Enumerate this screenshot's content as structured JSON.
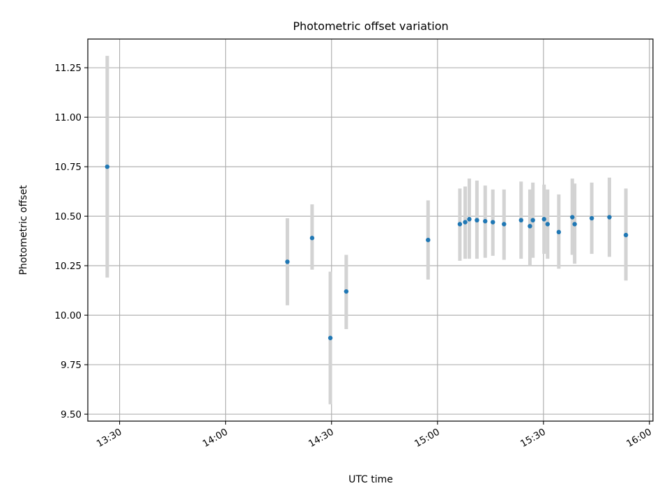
{
  "chart_data": {
    "type": "scatter",
    "title": "Photometric offset variation",
    "xlabel": "UTC time",
    "ylabel": "Photometric offset",
    "xlim": [
      "13:21",
      "16:01"
    ],
    "ylim": [
      9.465,
      11.395
    ],
    "x_ticks": [
      "13:30",
      "14:00",
      "14:30",
      "15:00",
      "15:30",
      "16:00"
    ],
    "y_ticks": [
      "9.50",
      "9.75",
      "10.00",
      "10.25",
      "10.50",
      "10.75",
      "11.00",
      "11.25"
    ],
    "grid": true,
    "colors": {
      "points": "#1f77b4",
      "error_bars": "#d3d3d3",
      "grid": "#b0b0b0"
    },
    "series": [
      {
        "points": [
          {
            "x": "13:26:30",
            "y": 10.75,
            "ylo": 10.19,
            "yhi": 11.31
          },
          {
            "x": "14:17:30",
            "y": 10.27,
            "ylo": 10.05,
            "yhi": 10.49
          },
          {
            "x": "14:24:30",
            "y": 10.39,
            "ylo": 10.23,
            "yhi": 10.56
          },
          {
            "x": "14:29:40",
            "y": 9.885,
            "ylo": 9.55,
            "yhi": 10.22
          },
          {
            "x": "14:34:10",
            "y": 10.12,
            "ylo": 9.93,
            "yhi": 10.305
          },
          {
            "x": "14:57:20",
            "y": 10.38,
            "ylo": 10.18,
            "yhi": 10.58
          },
          {
            "x": "15:06:20",
            "y": 10.46,
            "ylo": 10.275,
            "yhi": 10.64
          },
          {
            "x": "15:07:50",
            "y": 10.47,
            "ylo": 10.285,
            "yhi": 10.65
          },
          {
            "x": "15:09:00",
            "y": 10.485,
            "ylo": 10.285,
            "yhi": 10.69
          },
          {
            "x": "15:11:10",
            "y": 10.48,
            "ylo": 10.285,
            "yhi": 10.68
          },
          {
            "x": "15:13:30",
            "y": 10.475,
            "ylo": 10.29,
            "yhi": 10.655
          },
          {
            "x": "15:15:40",
            "y": 10.47,
            "ylo": 10.3,
            "yhi": 10.635
          },
          {
            "x": "15:18:50",
            "y": 10.46,
            "ylo": 10.28,
            "yhi": 10.635
          },
          {
            "x": "15:23:40",
            "y": 10.48,
            "ylo": 10.285,
            "yhi": 10.675
          },
          {
            "x": "15:26:10",
            "y": 10.45,
            "ylo": 10.25,
            "yhi": 10.635
          },
          {
            "x": "15:27:00",
            "y": 10.48,
            "ylo": 10.29,
            "yhi": 10.67
          },
          {
            "x": "15:30:10",
            "y": 10.485,
            "ylo": 10.31,
            "yhi": 10.66
          },
          {
            "x": "15:31:10",
            "y": 10.46,
            "ylo": 10.285,
            "yhi": 10.635
          },
          {
            "x": "15:34:20",
            "y": 10.42,
            "ylo": 10.235,
            "yhi": 10.61
          },
          {
            "x": "15:38:10",
            "y": 10.495,
            "ylo": 10.305,
            "yhi": 10.69
          },
          {
            "x": "15:38:50",
            "y": 10.46,
            "ylo": 10.26,
            "yhi": 10.665
          },
          {
            "x": "15:43:40",
            "y": 10.49,
            "ylo": 10.31,
            "yhi": 10.67
          },
          {
            "x": "15:48:40",
            "y": 10.495,
            "ylo": 10.295,
            "yhi": 10.695
          },
          {
            "x": "15:53:20",
            "y": 10.405,
            "ylo": 10.175,
            "yhi": 10.64
          }
        ]
      }
    ]
  }
}
